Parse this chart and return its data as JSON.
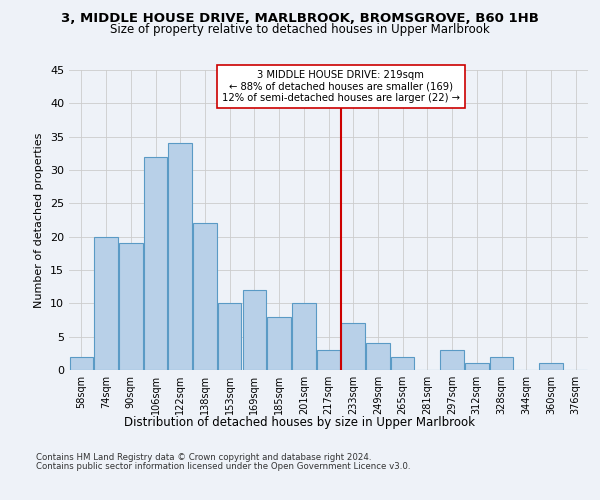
{
  "title1": "3, MIDDLE HOUSE DRIVE, MARLBROOK, BROMSGROVE, B60 1HB",
  "title2": "Size of property relative to detached houses in Upper Marlbrook",
  "xlabel": "Distribution of detached houses by size in Upper Marlbrook",
  "ylabel": "Number of detached properties",
  "categories": [
    "58sqm",
    "74sqm",
    "90sqm",
    "106sqm",
    "122sqm",
    "138sqm",
    "153sqm",
    "169sqm",
    "185sqm",
    "201sqm",
    "217sqm",
    "233sqm",
    "249sqm",
    "265sqm",
    "281sqm",
    "297sqm",
    "312sqm",
    "328sqm",
    "344sqm",
    "360sqm",
    "376sqm"
  ],
  "values": [
    2,
    20,
    19,
    32,
    34,
    22,
    10,
    12,
    8,
    10,
    3,
    7,
    4,
    2,
    0,
    3,
    1,
    2,
    0,
    1,
    0
  ],
  "bar_color": "#b8d0e8",
  "bar_edge_color": "#5a9ac5",
  "vline_index": 10,
  "annotation_title": "3 MIDDLE HOUSE DRIVE: 219sqm",
  "annotation_line1": "← 88% of detached houses are smaller (169)",
  "annotation_line2": "12% of semi-detached houses are larger (22) →",
  "vline_color": "#cc0000",
  "annotation_box_color": "#ffffff",
  "annotation_box_edge": "#cc0000",
  "ylim": [
    0,
    45
  ],
  "yticks": [
    0,
    5,
    10,
    15,
    20,
    25,
    30,
    35,
    40,
    45
  ],
  "footer1": "Contains HM Land Registry data © Crown copyright and database right 2024.",
  "footer2": "Contains public sector information licensed under the Open Government Licence v3.0.",
  "bg_color": "#eef2f8",
  "plot_bg_color": "#eef2f8"
}
